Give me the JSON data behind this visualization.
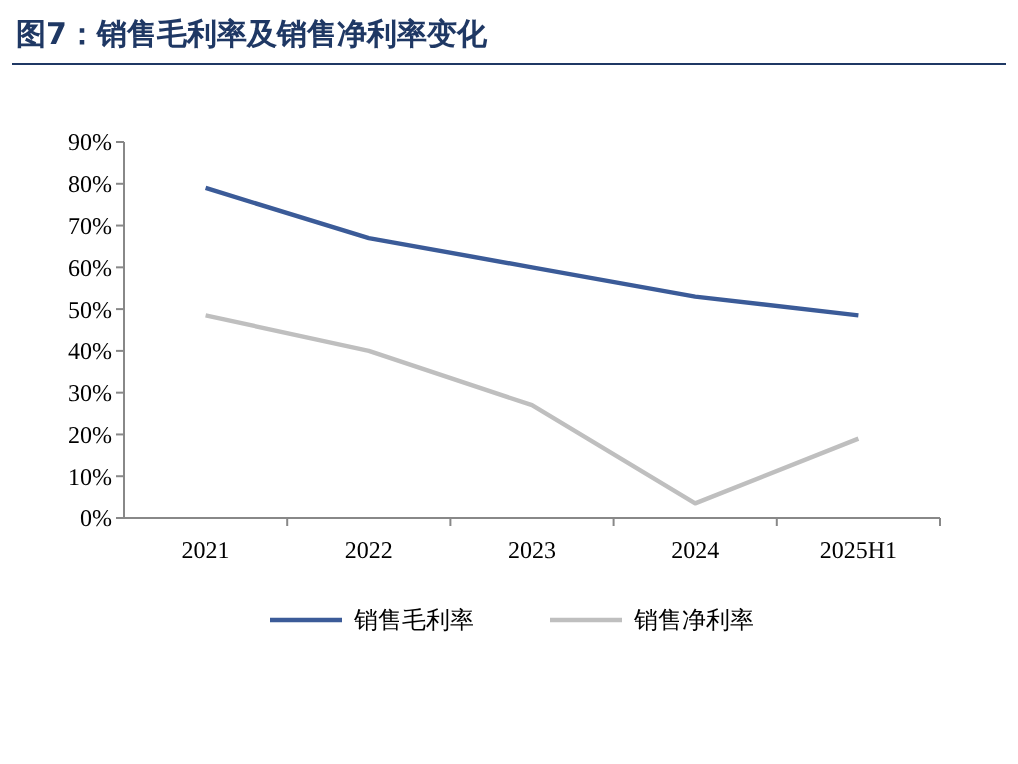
{
  "chart_data": {
    "type": "line",
    "title": "图7：销售毛利率及销售净利率变化",
    "categories": [
      "2021",
      "2022",
      "2023",
      "2024",
      "2025H1"
    ],
    "series": [
      {
        "name": "销售毛利率",
        "color": "#3b5b98",
        "values": [
          79,
          67,
          60,
          53,
          48.5
        ]
      },
      {
        "name": "销售净利率",
        "color": "#bfbfbf",
        "values": [
          48.5,
          40,
          27,
          3.5,
          19
        ]
      }
    ],
    "ylim": [
      0,
      90
    ],
    "yticks": [
      {
        "value": 0,
        "label": "0%"
      },
      {
        "value": 10,
        "label": "10%"
      },
      {
        "value": 20,
        "label": "20%"
      },
      {
        "value": 30,
        "label": "30%"
      },
      {
        "value": 40,
        "label": "40%"
      },
      {
        "value": 50,
        "label": "50%"
      },
      {
        "value": 60,
        "label": "60%"
      },
      {
        "value": 70,
        "label": "70%"
      },
      {
        "value": 80,
        "label": "80%"
      },
      {
        "value": 90,
        "label": "90%"
      }
    ],
    "grid": false,
    "legend": "bottom",
    "marker": "none",
    "line_style": "solid"
  }
}
